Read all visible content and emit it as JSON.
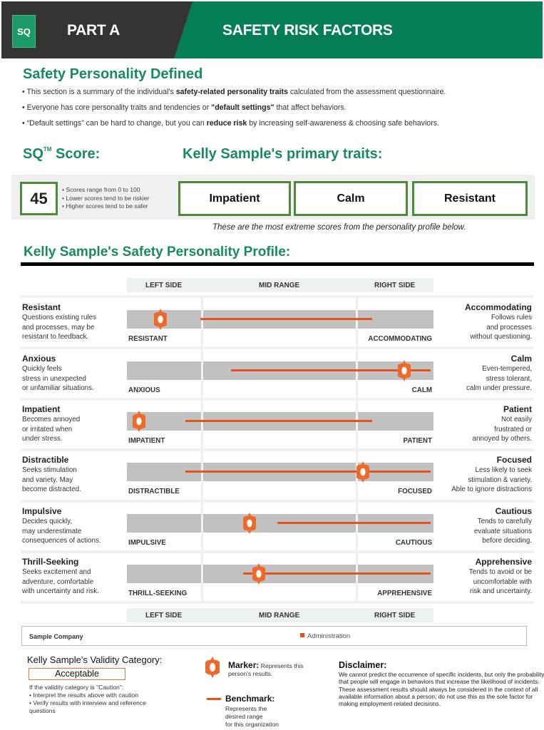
{
  "header": {
    "logo": "SQ",
    "part": "PART A",
    "title": "SAFETY RISK FACTORS",
    "colors": {
      "dark": "#343434",
      "green": "#057d57"
    }
  },
  "intro": {
    "title": "Safety Personality Defined",
    "bullets": [
      {
        "pre": "• This section is a summary of the individual's ",
        "bold": "safety-related personality traits",
        "post": " calculated from the assessment questionnaire."
      },
      {
        "pre": "• Everyone has core personality traits and tendencies or ",
        "bold": "\"default settings\"",
        "post": " that affect behaviors."
      },
      {
        "pre": "• “Default settings” can be hard to change, but you can ",
        "bold": "reduce risk",
        "post": " by increasing self-awareness & choosing safe behaviors."
      }
    ]
  },
  "score": {
    "title": "SQ",
    "tm": "TM",
    "title_suffix": " Score:",
    "value": "45",
    "notes": [
      "• Scores range from 0 to 100",
      "• Lower scores tend to be riskier",
      "• Higher scores tend to be safer"
    ]
  },
  "primary_traits": {
    "title": "Kelly Sample's primary traits:",
    "traits": [
      "Impatient",
      "Calm",
      "Resistant"
    ],
    "caption": "These are the most extreme scores from the personality profile below."
  },
  "profile": {
    "title": "Kelly Sample's Safety Personality Profile:",
    "columns": [
      "LEFT SIDE",
      "MID RANGE",
      "RIGHT SIDE"
    ],
    "rows": [
      {
        "left_name": "Resistant",
        "left_desc": [
          "Questions existing rules",
          "and processes, may be",
          "resistant to feedback."
        ],
        "right_name": "Accommodating",
        "right_desc": [
          "Follows rules",
          "and processes",
          "without questioning."
        ],
        "left_cap": "RESISTANT",
        "right_cap": "ACCOMMODATING",
        "marker": 0.11,
        "bench_start": 0.24,
        "bench_end": 0.8
      },
      {
        "left_name": "Anxious",
        "left_desc": [
          "Quickly feels",
          "stress in unexpected",
          "or unfamiliar situations."
        ],
        "right_name": "Calm",
        "right_desc": [
          "Even-tempered,",
          "stress tolerant,",
          "calm under pressure."
        ],
        "left_cap": "ANXIOUS",
        "right_cap": "CALM",
        "marker": 0.905,
        "bench_start": 0.34,
        "bench_end": 0.99
      },
      {
        "left_name": "Impatient",
        "left_desc": [
          "Becomes annoyed",
          "or irritated when",
          "under stress."
        ],
        "right_name": "Patient",
        "right_desc": [
          "Not easily",
          "frustrated or",
          "annoyed by others."
        ],
        "left_cap": "IMPATIENT",
        "right_cap": "PATIENT",
        "marker": 0.04,
        "bench_start": 0.19,
        "bench_end": 0.8
      },
      {
        "left_name": "Distractible",
        "left_desc": [
          "Seeks stimulation",
          "and variety. May",
          "become distracted."
        ],
        "right_name": "Focused",
        "right_desc": [
          "Less likely to seek",
          "stimulation & variety.",
          "Able to ignore distractions"
        ],
        "left_cap": "DISTRACTIBLE",
        "right_cap": "FOCUSED",
        "marker": 0.77,
        "bench_start": 0.19,
        "bench_end": 0.99
      },
      {
        "left_name": "Impulsive",
        "left_desc": [
          "Decides quickly,",
          "may underestimate",
          "consequences of actions."
        ],
        "right_name": "Cautious",
        "right_desc": [
          "Tends to carefully",
          "evaluate situations",
          "before deciding."
        ],
        "left_cap": "IMPULSIVE",
        "right_cap": "CAUTIOUS",
        "marker": 0.4,
        "bench_start": 0.49,
        "bench_end": 0.99
      },
      {
        "left_name": "Thrill-Seeking",
        "left_desc": [
          "Seeks excitement and",
          "adventure, comfortable",
          "with uncertainty and risk."
        ],
        "right_name": "Apprehensive",
        "right_desc": [
          "Tends to avoid or be",
          "uncomfortable with",
          "risk and uncertainty."
        ],
        "left_cap": "THRILL-SEEKING",
        "right_cap": "APPREHENSIVE",
        "marker": 0.43,
        "bench_start": 0.38,
        "bench_end": 0.99
      }
    ],
    "colors": {
      "bar": "#c1c1c1",
      "benchmark": "#e3541d",
      "marker": "#ee6a2c"
    }
  },
  "company": {
    "name": "Sample Company",
    "department": "Administration"
  },
  "validity": {
    "title": "Kelly Sample's Validity Category:",
    "value": "Acceptable",
    "notes": [
      "If the validity category is \"Caution\":",
      "• Interpret the results above with caution",
      "• Verify results with interview and reference questions"
    ]
  },
  "legend": {
    "marker_title": "Marker:",
    "marker_desc": " Represents this person's results.",
    "bench_title": "Benchmark:",
    "bench_desc": [
      "Represents the",
      "desired range",
      "for this organization"
    ]
  },
  "disclaimer": {
    "title": "Disclaimer:",
    "text": "We cannot predict the occurrence of specific incidents, but only the probability that people will engage in behaviors that increase the likelihood of incidents. These assessment results should always be considered in the context of all available information about a person; do not use this as the sole factor for making employment-related decisions."
  }
}
